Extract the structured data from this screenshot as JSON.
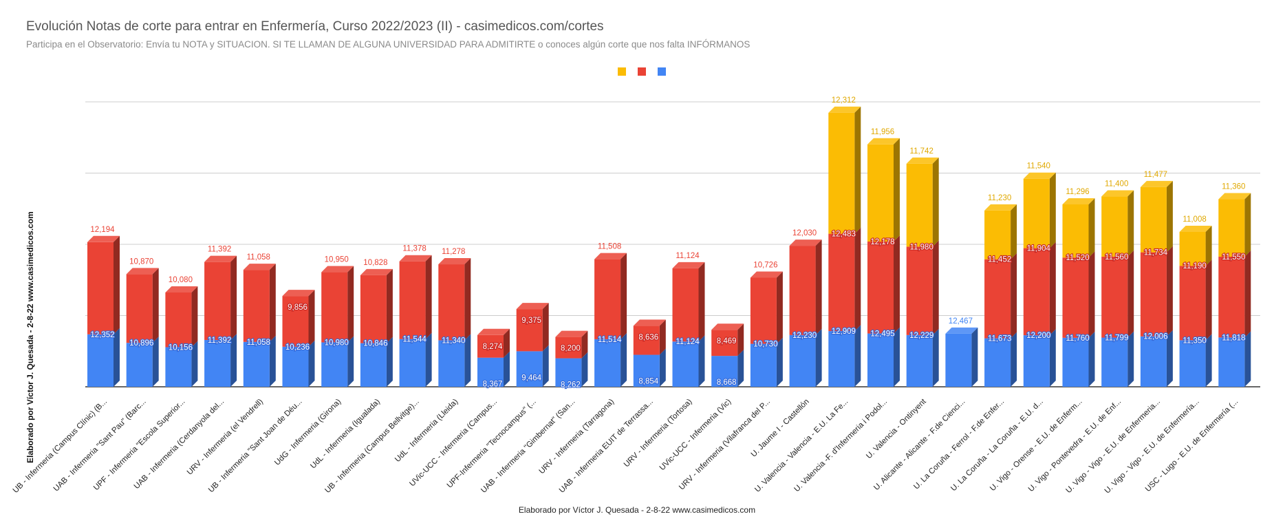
{
  "title": "Evolución Notas de corte para entrar en Enfermería, Curso 2022/2023 (II) - casimedicos.com/cortes",
  "subtitle": "Participa en el Observatorio: Envía tu NOTA y SITUACION. SI TE LLAMAN DE ALGUNA UNIVERSIDAD PARA ADMITIRTE o conoces algún corte que nos falta INFÓRMANOS",
  "y_axis_label": "Elaborado por Víctor J. Quesada - 2-8-22  www.casimedicos.com",
  "x_axis_label": "Elaborado por Víctor J. Quesada - 2-8-22  www.casimedicos.com",
  "colors": {
    "blue": "#4285f4",
    "red": "#ea4335",
    "yellow": "#fbbc04",
    "grid": "#cccccc",
    "axis": "#333333"
  },
  "chart_data": {
    "type": "bar",
    "stacked": true,
    "three_d": true,
    "legend": {
      "position": "top",
      "entries": [
        "",
        "",
        ""
      ]
    },
    "grid": true,
    "categories": [
      "UB - Infermeria (Campus Clínic) (B...",
      "UAB - Infermeria \"Sant Pau\" (Barc...",
      "UPF - Infermeria \"Escola Superior...",
      "UAB - Infermeria (Cerdanyola del...",
      "URV - Infermeria (el Vendrell)",
      "UB - Infermeria \"Sant Joan de Déu...",
      "UdG - Infermeria (Girona)",
      "UdL - Infermeria (Igualada)",
      "UB - Infermeria (Campus Bellvitge)...",
      "UdL - Infermeria (Lleida)",
      "UVic-UCC - Infermeria (Campus...",
      "UPF-Infermeria \"Tecnocampus\" (...",
      "UAB - Infermeria \"Gimbernat\" (San...",
      "URV - Infermeria (Tarragona)",
      "UAB - Infermeria EUIT de Terrassa...",
      "URV - Infermeria (Tortosa)",
      "UVic-UCC - Infermeria (Vic)",
      "URV - Infermeria (Vilafranca del P...",
      "U. Jaume I - Castellón",
      "U. Valencia - Valencia - E.U. La Fe...",
      "U. Valencia -F. d'Infermeria i Podol...",
      "U. Valencia - Ontinyent",
      "U. Alicante - Alicante - F.de Cienci...",
      "U. La Coruña - Ferrol - F.de Enfer...",
      "U. La Coruña - La Coruña - E.U. d...",
      "U. Vigo - Orense - E.U. de Enferm...",
      "U. Vigo - Pontevedra - E.U. de Enf...",
      "U. Vigo - Vigo - E.U. de Enfermeria...",
      "U. Vigo - Vigo - E.U. de Enfermería...",
      "USC - Lugo - E.U. de Enfermería (..."
    ],
    "series": [
      {
        "color": "#4285f4",
        "values": [
          12.352,
          10.896,
          10.156,
          11.392,
          11.058,
          10.236,
          10.98,
          10.846,
          11.544,
          11.34,
          8.367,
          9.464,
          8.262,
          11.514,
          8.854,
          11.124,
          8.668,
          10.73,
          12.23,
          12.909,
          12.495,
          12.229,
          12.467,
          11.673,
          12.2,
          11.76,
          11.799,
          12.006,
          11.35,
          11.818
        ],
        "labels": [
          "12,352",
          "10,896",
          "10,156",
          "11,392",
          "11,058",
          "10,236",
          "10,980",
          "10,846",
          "11,544",
          "11,340",
          "8,367",
          "9,464",
          "8,262",
          "11,514",
          "8,854",
          "11,124",
          "8,668",
          "10,730",
          "12,230",
          "12,909",
          "12,495",
          "12,229",
          "12,467",
          "11,673",
          "12,200",
          "11,760",
          "11,799",
          "12,006",
          "11,350",
          "11,818"
        ]
      },
      {
        "color": "#ea4335",
        "values": [
          12.194,
          10.87,
          10.08,
          11.392,
          11.058,
          9.856,
          10.95,
          10.828,
          11.378,
          11.278,
          8.274,
          9.375,
          8.2,
          11.508,
          8.636,
          11.124,
          8.469,
          10.726,
          12.03,
          12.483,
          12.178,
          11.98,
          null,
          11.452,
          11.904,
          11.52,
          11.56,
          11.734,
          11.19,
          11.55
        ],
        "labels": [
          "12,194",
          "10,870",
          "10,080",
          "11,392",
          "11,058",
          "9,856",
          "10,950",
          "10,828",
          "11,378",
          "11,278",
          "8,274",
          "9,375",
          "8,200",
          "11,508",
          "8,636",
          "11,124",
          "8,469",
          "10,726",
          "12,030",
          "12,483",
          "12,178",
          "11,980",
          "",
          "11,452",
          "11,904",
          "11,520",
          "11,560",
          "11,734",
          "11,190",
          "11,550"
        ]
      },
      {
        "color": "#fbbc04",
        "values": [
          null,
          null,
          null,
          null,
          null,
          null,
          null,
          null,
          null,
          null,
          null,
          null,
          null,
          null,
          null,
          null,
          null,
          null,
          null,
          12.312,
          11.956,
          11.742,
          null,
          11.23,
          11.54,
          11.296,
          11.4,
          11.477,
          11.008,
          11.36
        ],
        "labels": [
          "",
          "",
          "",
          "",
          "",
          "",
          "",
          "",
          "",
          "",
          "",
          "",
          "",
          "",
          "",
          "",
          "",
          "",
          "",
          "12,312",
          "11,956",
          "11,742",
          "",
          "11,230",
          "11,540",
          "11,296",
          "11,400",
          "11,477",
          "11,008",
          "11,360"
        ]
      }
    ]
  }
}
